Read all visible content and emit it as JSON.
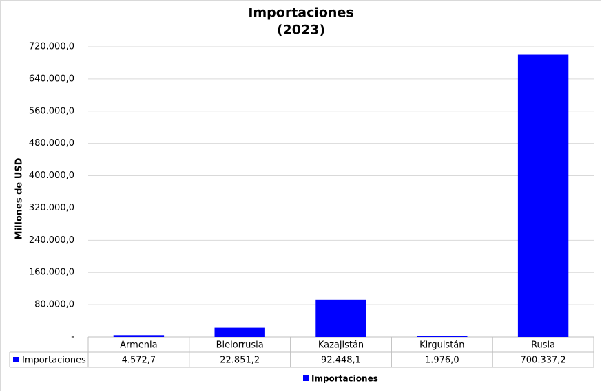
{
  "chart_data": {
    "type": "bar",
    "title": "Importaciones",
    "subtitle": "(2023)",
    "y_label": "Millones de USD",
    "categories": [
      "Armenia",
      "Bielorrusia",
      "Kazajistán",
      "Kirguistán",
      "Rusia"
    ],
    "series": [
      {
        "name": "Importaciones",
        "color": "#0000ff",
        "values": [
          4572.7,
          22851.2,
          92448.1,
          1976.0,
          700337.2
        ],
        "value_labels": [
          "4.572,7",
          "22.851,2",
          "92.448,1",
          "1.976,0",
          "700.337,2"
        ]
      }
    ],
    "ylim": [
      0,
      720000
    ],
    "yticks": [
      {
        "value": 0,
        "label": "-"
      },
      {
        "value": 80000,
        "label": "80.000,0"
      },
      {
        "value": 160000,
        "label": "160.000,0"
      },
      {
        "value": 240000,
        "label": "240.000,0"
      },
      {
        "value": 320000,
        "label": "320.000,0"
      },
      {
        "value": 400000,
        "label": "400.000,0"
      },
      {
        "value": 480000,
        "label": "480.000,0"
      },
      {
        "value": 560000,
        "label": "560.000,0"
      },
      {
        "value": 640000,
        "label": "640.000,0"
      },
      {
        "value": 720000,
        "label": "720.000,0"
      }
    ],
    "grid": true,
    "legend": "bottom"
  }
}
